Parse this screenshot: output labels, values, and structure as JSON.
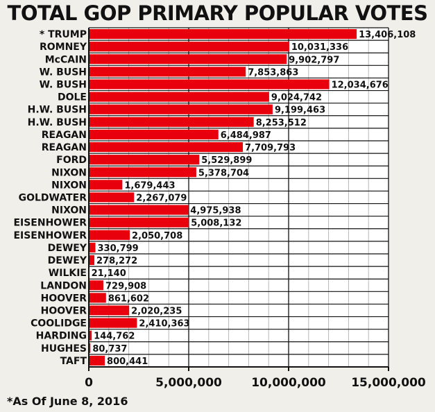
{
  "chart_data": {
    "type": "bar",
    "orientation": "horizontal",
    "title": "TOTAL GOP PRIMARY POPULAR VOTES",
    "footnote": "*As Of June 8, 2016",
    "bar_color": "#e8000d",
    "xlim": [
      0,
      15000000
    ],
    "x_ticks": [
      0,
      5000000,
      10000000,
      15000000
    ],
    "x_tick_labels": [
      "0",
      "5,000,000",
      "10,000,000",
      "15,000,000"
    ],
    "categories": [
      "* TRUMP",
      "ROMNEY",
      "McCAIN",
      "W. BUSH",
      "W. BUSH",
      "DOLE",
      "H.W. BUSH",
      "H.W. BUSH",
      "REAGAN",
      "REAGAN",
      "FORD",
      "NIXON",
      "NIXON",
      "GOLDWATER",
      "NIXON",
      "EISENHOWER",
      "EISENHOWER",
      "DEWEY",
      "DEWEY",
      "WILKIE",
      "LANDON",
      "HOOVER",
      "HOOVER",
      "COOLIDGE",
      "HARDING",
      "HUGHES",
      "TAFT"
    ],
    "values": [
      13406108,
      10031336,
      9902797,
      7853863,
      12034676,
      9024742,
      9199463,
      8253512,
      6484987,
      7709793,
      5529899,
      5378704,
      1679443,
      2267079,
      4975938,
      5008132,
      2050708,
      330799,
      278272,
      21140,
      729908,
      861602,
      2020235,
      2410363,
      144762,
      80737,
      800441
    ],
    "value_labels": [
      "13,406,108",
      "10,031,336",
      "9,902,797",
      "7,853,863",
      "12,034,676",
      "9,024,742",
      "9,199,463",
      "8,253,512",
      "6,484,987",
      "7,709,793",
      "5,529,899",
      "5,378,704",
      "1,679,443",
      "2,267,079",
      "4,975,938",
      "5,008,132",
      "2,050,708",
      "330,799",
      "278,272",
      "21,140",
      "729,908",
      "861,602",
      "2,020,235",
      "2,410,363",
      "144,762",
      "80,737",
      "800,441"
    ]
  }
}
